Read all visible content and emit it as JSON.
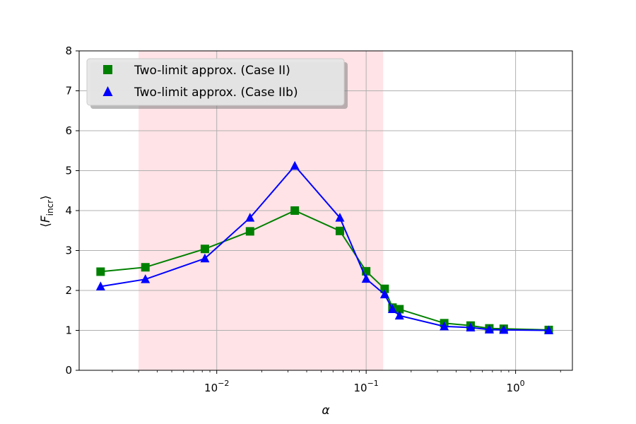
{
  "chart_data": {
    "type": "line",
    "xscale": "log",
    "xlim": [
      0.0012,
      2.4
    ],
    "ylim": [
      0,
      8
    ],
    "xticks": [
      {
        "value": 0.01,
        "base": "10",
        "exp": "−2"
      },
      {
        "value": 0.1,
        "base": "10",
        "exp": "−1"
      },
      {
        "value": 1,
        "base": "10",
        "exp": "0"
      }
    ],
    "yticks": [
      "0",
      "1",
      "2",
      "3",
      "4",
      "5",
      "6",
      "7",
      "8"
    ],
    "xlabel": "α",
    "ylabel": {
      "open": "⟨",
      "var": "F",
      "sub": "incr",
      "close": "⟩"
    },
    "grid": true,
    "shaded_region": {
      "x_from": 0.003,
      "x_to": 0.13,
      "color": "#ffe3e6"
    },
    "legend": {
      "location": "upper-left"
    },
    "series": [
      {
        "name": "Two-limit approx. (Case II)",
        "marker": "square",
        "color": "#008000",
        "x": [
          0.00167,
          0.00333,
          0.00833,
          0.0167,
          0.0333,
          0.0667,
          0.1,
          0.133,
          0.15,
          0.167,
          0.333,
          0.5,
          0.667,
          0.833,
          1.667
        ],
        "y": [
          2.47,
          2.58,
          3.04,
          3.48,
          4.0,
          3.49,
          2.48,
          2.04,
          1.57,
          1.53,
          1.18,
          1.12,
          1.05,
          1.04,
          1.01
        ]
      },
      {
        "name": "Two-limit approx. (Case IIb)",
        "marker": "triangle",
        "color": "#0000ff",
        "x": [
          0.00167,
          0.00333,
          0.00833,
          0.0167,
          0.0333,
          0.0667,
          0.1,
          0.133,
          0.15,
          0.167,
          0.333,
          0.5,
          0.667,
          0.833,
          1.667
        ],
        "y": [
          2.1,
          2.28,
          2.8,
          3.82,
          5.12,
          3.82,
          2.29,
          1.9,
          1.53,
          1.37,
          1.1,
          1.07,
          1.02,
          1.01,
          1.0
        ]
      }
    ]
  }
}
